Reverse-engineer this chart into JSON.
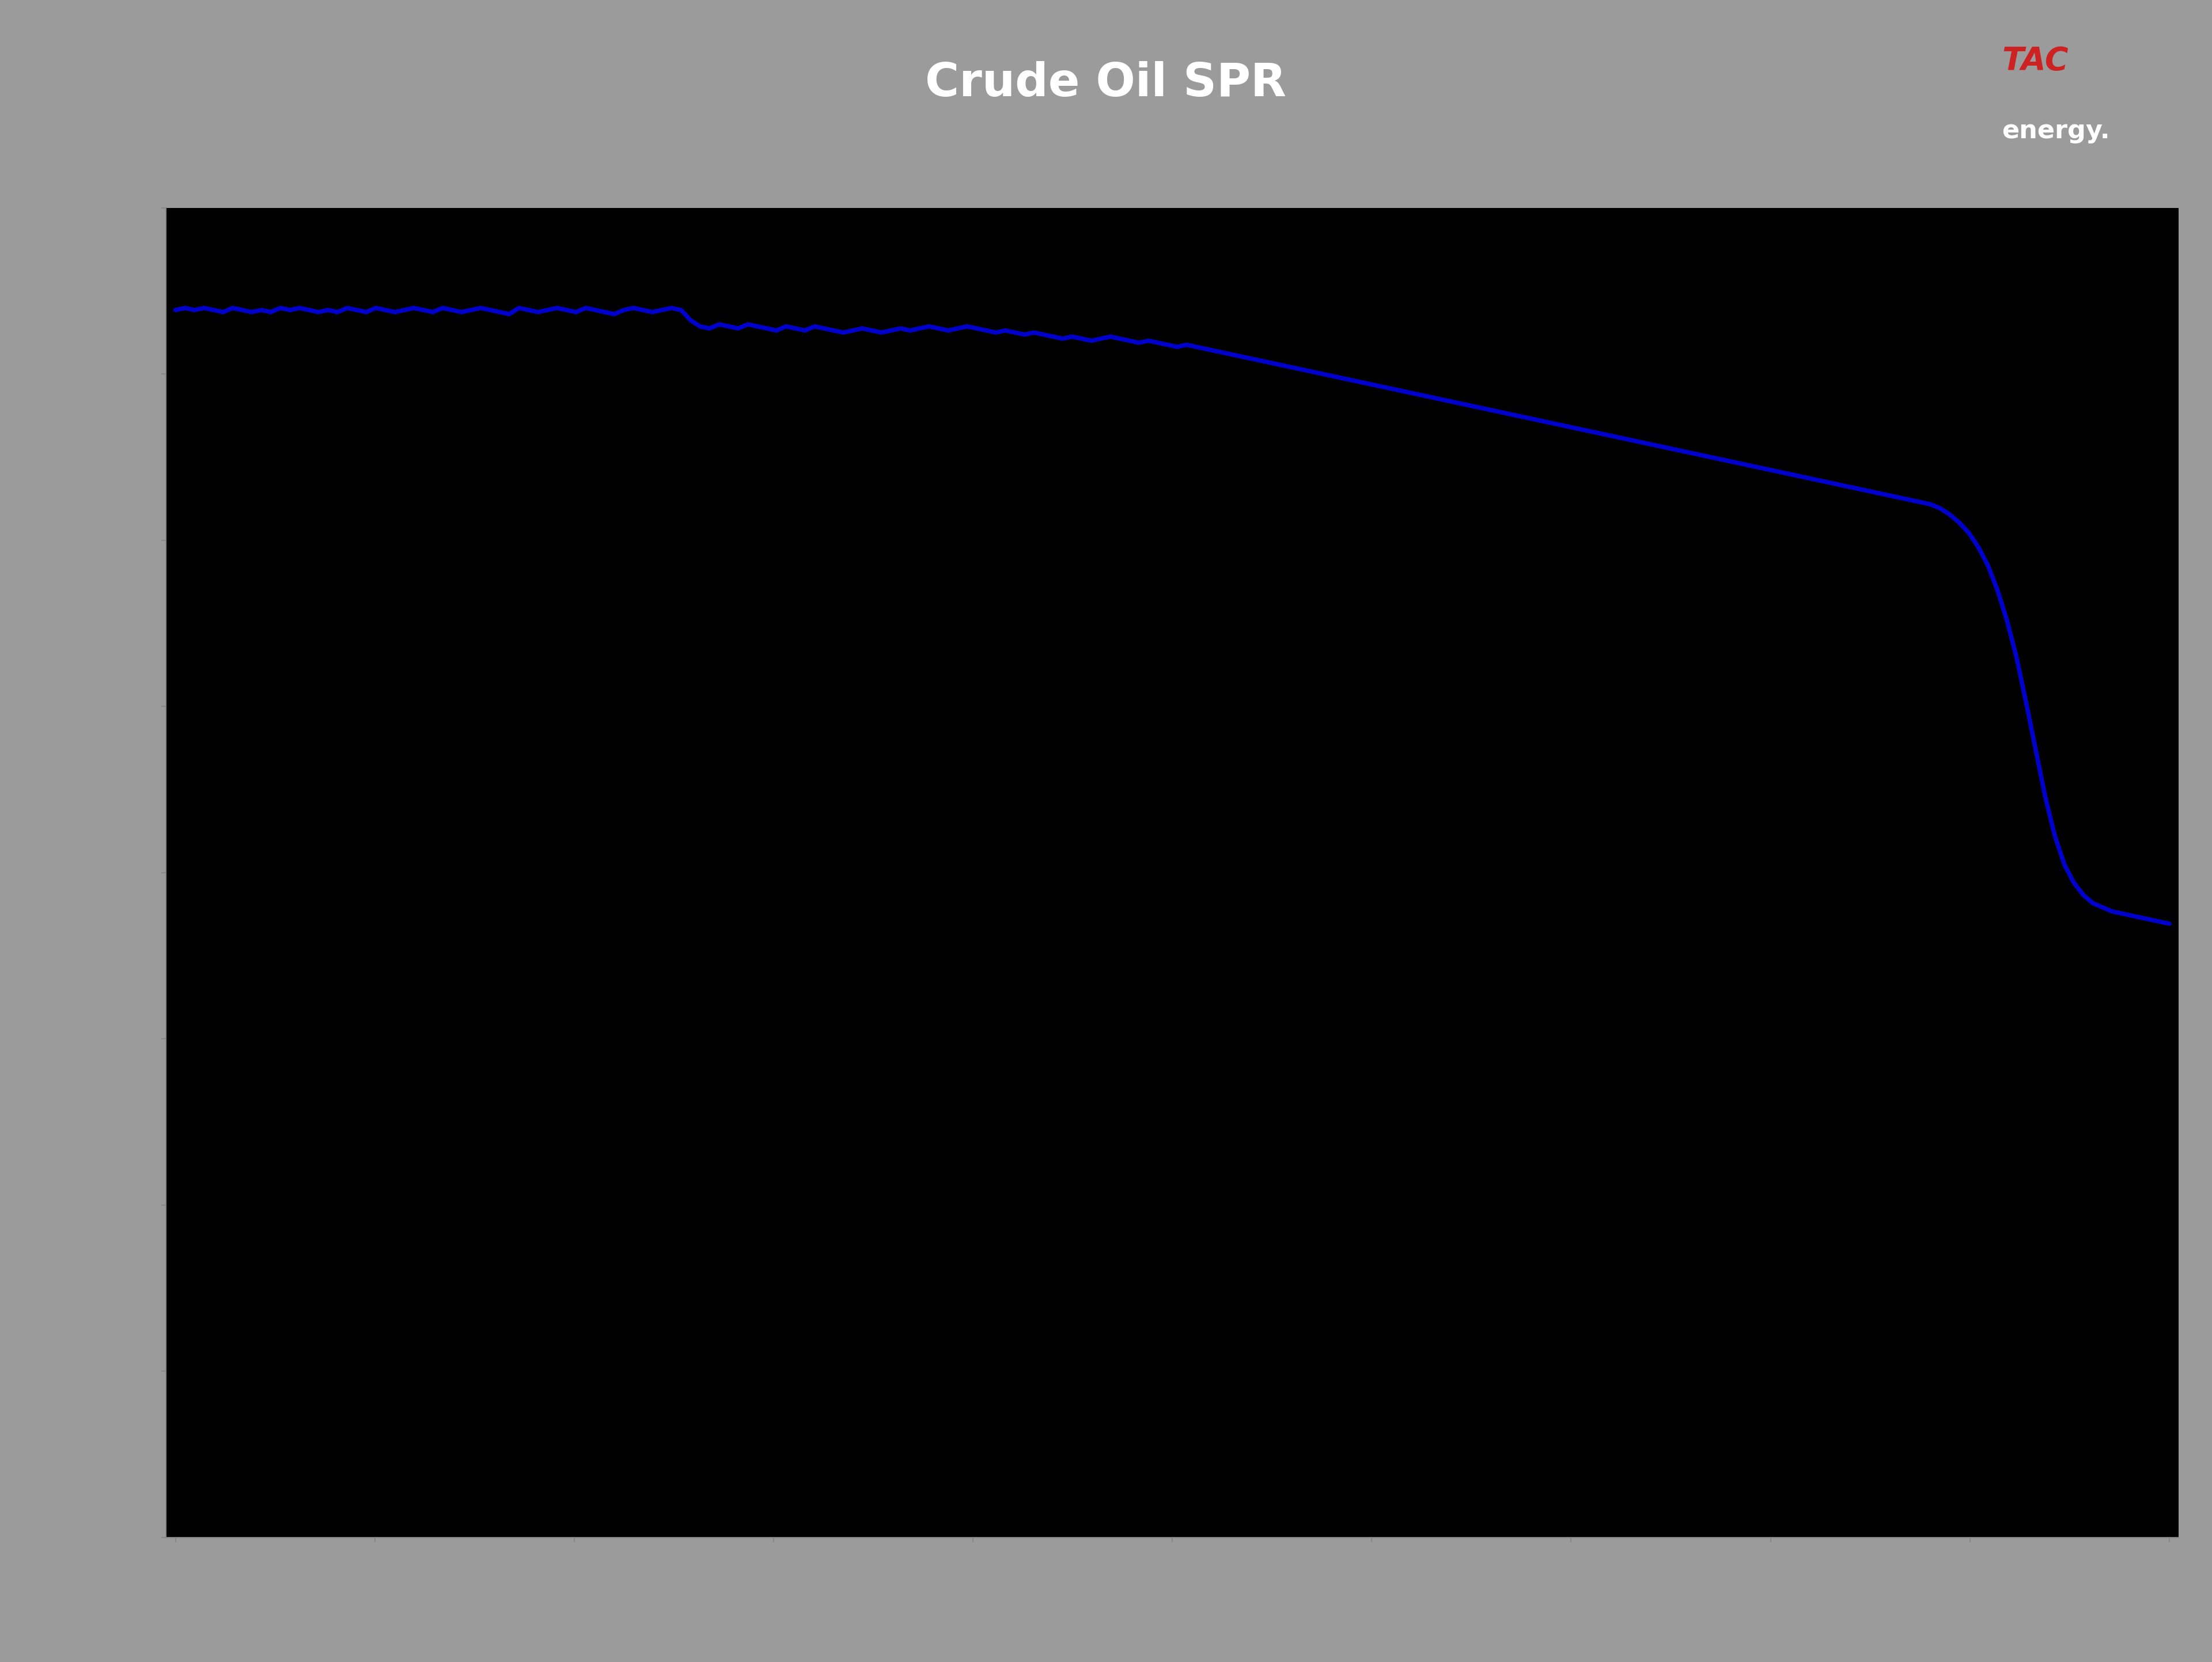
{
  "title": "Crude Oil SPR",
  "title_fontsize": 58,
  "title_color": "#ffffff",
  "header_bg_color": "#9b9b9b",
  "blue_bar_color": "#1a5fbe",
  "plot_bg_color": "#000000",
  "outer_bg_color": "#9b9b9b",
  "line_color": "#0000cc",
  "line_width": 5.5,
  "axis_color": "#888888",
  "tick_color": "#888888",
  "y_values": [
    600,
    601,
    600,
    601,
    600,
    599,
    601,
    600,
    599,
    600,
    599,
    601,
    600,
    601,
    600,
    599,
    600,
    599,
    601,
    600,
    599,
    601,
    600,
    599,
    600,
    601,
    600,
    599,
    601,
    600,
    599,
    600,
    601,
    600,
    599,
    598,
    601,
    600,
    599,
    600,
    601,
    600,
    599,
    601,
    600,
    599,
    598,
    600,
    601,
    600,
    599,
    600,
    601,
    600,
    595,
    592,
    591,
    593,
    592,
    591,
    593,
    592,
    591,
    590,
    592,
    591,
    590,
    592,
    591,
    590,
    589,
    590,
    591,
    590,
    589,
    590,
    591,
    590,
    591,
    592,
    591,
    590,
    591,
    592,
    591,
    590,
    589,
    590,
    589,
    588,
    589,
    588,
    587,
    586,
    587,
    586,
    585,
    586,
    587,
    586,
    585,
    584,
    585,
    584,
    583,
    582,
    583,
    582,
    581,
    580,
    579,
    578,
    577,
    576,
    575,
    574,
    573,
    572,
    571,
    570,
    569,
    568,
    567,
    566,
    565,
    564,
    563,
    562,
    561,
    560,
    559,
    558,
    557,
    556,
    555,
    554,
    553,
    552,
    551,
    550,
    549,
    548,
    547,
    546,
    545,
    544,
    543,
    542,
    541,
    540,
    539,
    538,
    537,
    536,
    535,
    534,
    533,
    532,
    531,
    530,
    529,
    528,
    527,
    526,
    525,
    524,
    523,
    522,
    521,
    520,
    519,
    518,
    517,
    516,
    515,
    514,
    513,
    512,
    511,
    510,
    509,
    508,
    507,
    506,
    505,
    503,
    500,
    496,
    491,
    484,
    475,
    463,
    448,
    430,
    408,
    385,
    362,
    343,
    329,
    320,
    314,
    310,
    308,
    306,
    305,
    304,
    303,
    302,
    301,
    300
  ],
  "ylim_min": 0,
  "ylim_max": 650,
  "ytick_count": 9,
  "xtick_count": 11,
  "figwidth": 38.4,
  "figheight": 28.85,
  "logo_text_tac": "TAC",
  "logo_text_energy": "energy.",
  "logo_tac_color": "#cc2222",
  "logo_energy_color": "#ffffff"
}
